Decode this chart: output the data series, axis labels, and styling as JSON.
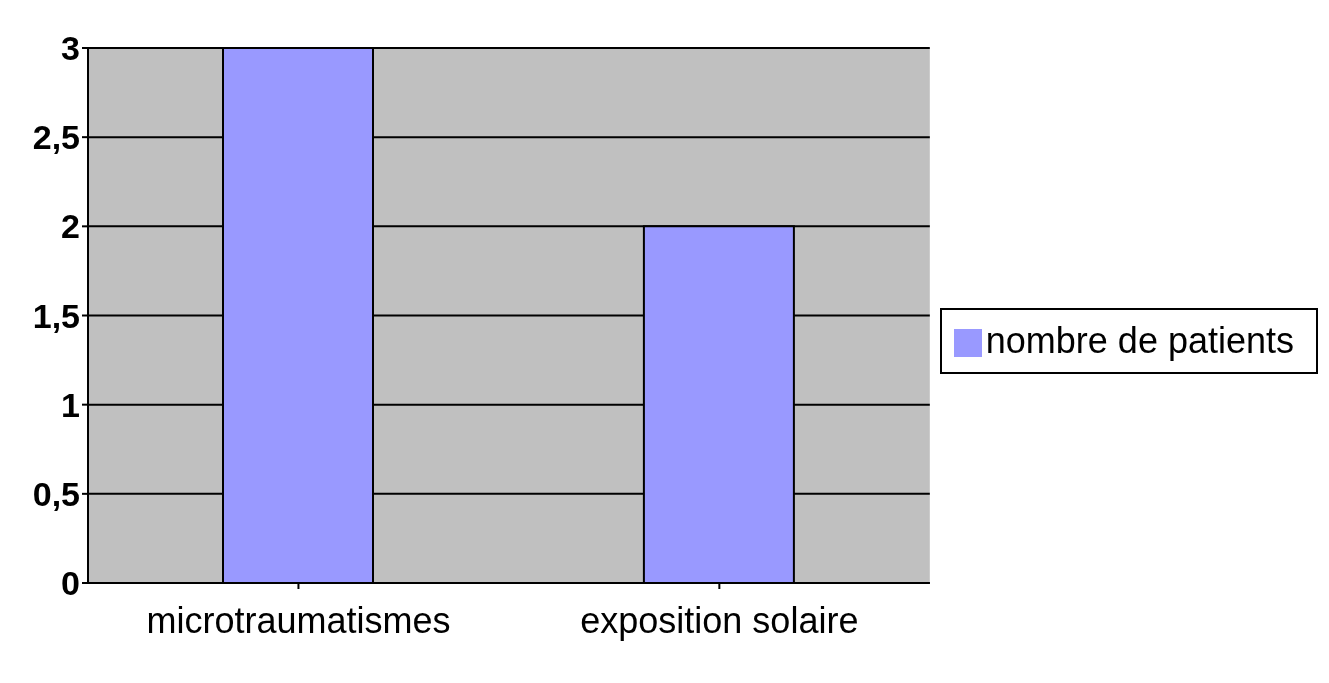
{
  "chart_data": {
    "type": "bar",
    "categories": [
      "microtraumatismes",
      "exposition solaire"
    ],
    "series": [
      {
        "name": "nombre de patients",
        "color": "#9999ff",
        "values": [
          3,
          2
        ]
      }
    ],
    "ylim": [
      0,
      3
    ],
    "yticks": [
      0,
      {
        "value": 0.5,
        "label": "0,5"
      },
      1,
      {
        "value": 1.5,
        "label": "1,5"
      },
      2,
      {
        "value": 2.5,
        "label": "2,5"
      },
      3
    ],
    "grid": "y",
    "legend": "right"
  }
}
